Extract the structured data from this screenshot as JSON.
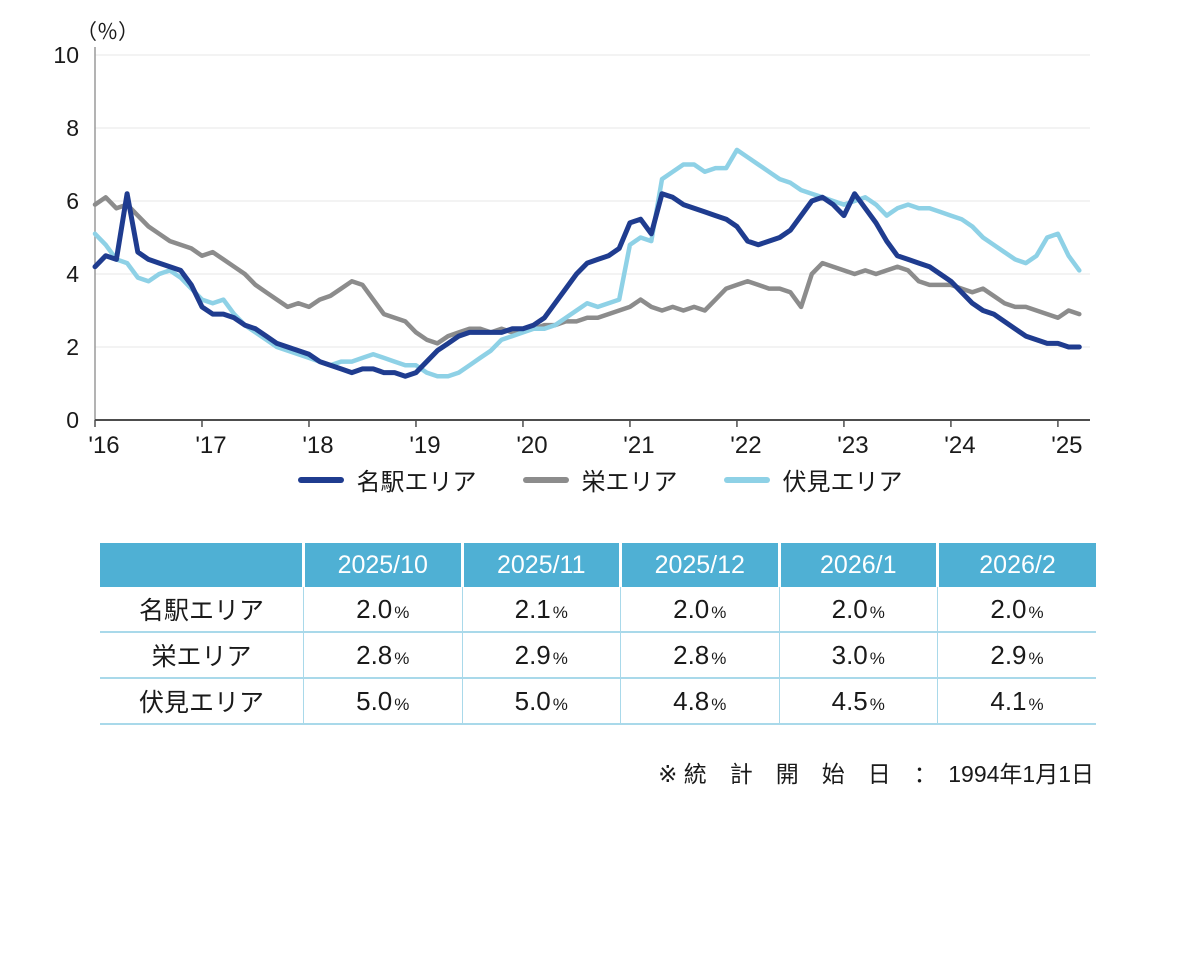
{
  "chart_data": {
    "type": "line",
    "title": "",
    "ylabel": "（％）",
    "xlabel": "",
    "ylim": [
      0,
      10
    ],
    "xlim": [
      2016,
      2025.3
    ],
    "grid": true,
    "legend_position": "bottom",
    "y_ticks": [
      0,
      2,
      4,
      6,
      8,
      10
    ],
    "x_tick_positions": [
      2016,
      2017,
      2018,
      2019,
      2020,
      2021,
      2022,
      2023,
      2024,
      2025
    ],
    "x_tick_labels": [
      "'16",
      "'17",
      "'18",
      "'19",
      "'20",
      "'21",
      "'22",
      "'23",
      "'24",
      "'25"
    ],
    "x": [
      2016,
      2016.1,
      2016.2,
      2016.3,
      2016.4,
      2016.5,
      2016.6,
      2016.7,
      2016.8,
      2016.9,
      2017,
      2017.1,
      2017.2,
      2017.3,
      2017.4,
      2017.5,
      2017.6,
      2017.7,
      2017.8,
      2017.9,
      2018,
      2018.1,
      2018.2,
      2018.3,
      2018.4,
      2018.5,
      2018.6,
      2018.7,
      2018.8,
      2018.9,
      2019,
      2019.1,
      2019.2,
      2019.3,
      2019.4,
      2019.5,
      2019.6,
      2019.7,
      2019.8,
      2019.9,
      2020,
      2020.1,
      2020.2,
      2020.3,
      2020.4,
      2020.5,
      2020.6,
      2020.7,
      2020.8,
      2020.9,
      2021,
      2021.1,
      2021.2,
      2021.3,
      2021.4,
      2021.5,
      2021.6,
      2021.7,
      2021.8,
      2021.9,
      2022,
      2022.1,
      2022.2,
      2022.3,
      2022.4,
      2022.5,
      2022.6,
      2022.7,
      2022.8,
      2022.9,
      2023,
      2023.1,
      2023.2,
      2023.3,
      2023.4,
      2023.5,
      2023.6,
      2023.7,
      2023.8,
      2023.9,
      2024,
      2024.1,
      2024.2,
      2024.3,
      2024.4,
      2024.5,
      2024.6,
      2024.7,
      2024.8,
      2024.9,
      2025,
      2025.1,
      2025.2
    ],
    "series": [
      {
        "name": "名駅エリア",
        "color": "#1f3c8f",
        "values": [
          4.2,
          4.5,
          4.4,
          6.2,
          4.6,
          4.4,
          4.3,
          4.2,
          4.1,
          3.7,
          3.1,
          2.9,
          2.9,
          2.8,
          2.6,
          2.5,
          2.3,
          2.1,
          2.0,
          1.9,
          1.8,
          1.6,
          1.5,
          1.4,
          1.3,
          1.4,
          1.4,
          1.3,
          1.3,
          1.2,
          1.3,
          1.6,
          1.9,
          2.1,
          2.3,
          2.4,
          2.4,
          2.4,
          2.4,
          2.5,
          2.5,
          2.6,
          2.8,
          3.2,
          3.6,
          4.0,
          4.3,
          4.4,
          4.5,
          4.7,
          5.4,
          5.5,
          5.1,
          6.2,
          6.1,
          5.9,
          5.8,
          5.7,
          5.6,
          5.5,
          5.3,
          4.9,
          4.8,
          4.9,
          5.0,
          5.2,
          5.6,
          6.0,
          6.1,
          5.9,
          5.6,
          6.2,
          5.8,
          5.4,
          4.9,
          4.5,
          4.4,
          4.3,
          4.2,
          4.0,
          3.8,
          3.5,
          3.2,
          3.0,
          2.9,
          2.7,
          2.5,
          2.3,
          2.2,
          2.1,
          2.1,
          2.0,
          2.0
        ]
      },
      {
        "name": "栄エリア",
        "color": "#8c8c8c",
        "values": [
          5.9,
          6.1,
          5.8,
          5.9,
          5.6,
          5.3,
          5.1,
          4.9,
          4.8,
          4.7,
          4.5,
          4.6,
          4.4,
          4.2,
          4.0,
          3.7,
          3.5,
          3.3,
          3.1,
          3.2,
          3.1,
          3.3,
          3.4,
          3.6,
          3.8,
          3.7,
          3.3,
          2.9,
          2.8,
          2.7,
          2.4,
          2.2,
          2.1,
          2.3,
          2.4,
          2.5,
          2.5,
          2.4,
          2.5,
          2.4,
          2.5,
          2.5,
          2.6,
          2.6,
          2.7,
          2.7,
          2.8,
          2.8,
          2.9,
          3.0,
          3.1,
          3.3,
          3.1,
          3.0,
          3.1,
          3.0,
          3.1,
          3.0,
          3.3,
          3.6,
          3.7,
          3.8,
          3.7,
          3.6,
          3.6,
          3.5,
          3.1,
          4.0,
          4.3,
          4.2,
          4.1,
          4.0,
          4.1,
          4.0,
          4.1,
          4.2,
          4.1,
          3.8,
          3.7,
          3.7,
          3.7,
          3.6,
          3.5,
          3.6,
          3.4,
          3.2,
          3.1,
          3.1,
          3.0,
          2.9,
          2.8,
          3.0,
          2.9
        ]
      },
      {
        "name": "伏見エリア",
        "color": "#8ed1e6",
        "values": [
          5.1,
          4.8,
          4.4,
          4.3,
          3.9,
          3.8,
          4.0,
          4.1,
          3.9,
          3.6,
          3.3,
          3.2,
          3.3,
          2.9,
          2.6,
          2.4,
          2.2,
          2.0,
          1.9,
          1.8,
          1.7,
          1.6,
          1.5,
          1.6,
          1.6,
          1.7,
          1.8,
          1.7,
          1.6,
          1.5,
          1.5,
          1.3,
          1.2,
          1.2,
          1.3,
          1.5,
          1.7,
          1.9,
          2.2,
          2.3,
          2.4,
          2.5,
          2.5,
          2.6,
          2.8,
          3.0,
          3.2,
          3.1,
          3.2,
          3.3,
          4.8,
          5.0,
          4.9,
          6.6,
          6.8,
          7.0,
          7.0,
          6.8,
          6.9,
          6.9,
          7.4,
          7.2,
          7.0,
          6.8,
          6.6,
          6.5,
          6.3,
          6.2,
          6.1,
          6.0,
          5.9,
          6.0,
          6.1,
          5.9,
          5.6,
          5.8,
          5.9,
          5.8,
          5.8,
          5.7,
          5.6,
          5.5,
          5.3,
          5.0,
          4.8,
          4.6,
          4.4,
          4.3,
          4.5,
          5.0,
          5.1,
          4.5,
          4.1
        ]
      }
    ]
  },
  "table": {
    "header": [
      "",
      "2025/10",
      "2025/11",
      "2025/12",
      "2026/1",
      "2026/2"
    ],
    "unit": "%",
    "header_bg": "#4fb0d4",
    "border_color": "#a9d9ea",
    "rows": [
      {
        "label": "名駅エリア",
        "values": [
          "2.0",
          "2.1",
          "2.0",
          "2.0",
          "2.0"
        ]
      },
      {
        "label": "栄エリア",
        "values": [
          "2.8",
          "2.9",
          "2.8",
          "3.0",
          "2.9"
        ]
      },
      {
        "label": "伏見エリア",
        "values": [
          "5.0",
          "5.0",
          "4.8",
          "4.5",
          "4.1"
        ]
      }
    ]
  },
  "footnote": "※ 統　計　開　始　日　：　1994年1月1日"
}
